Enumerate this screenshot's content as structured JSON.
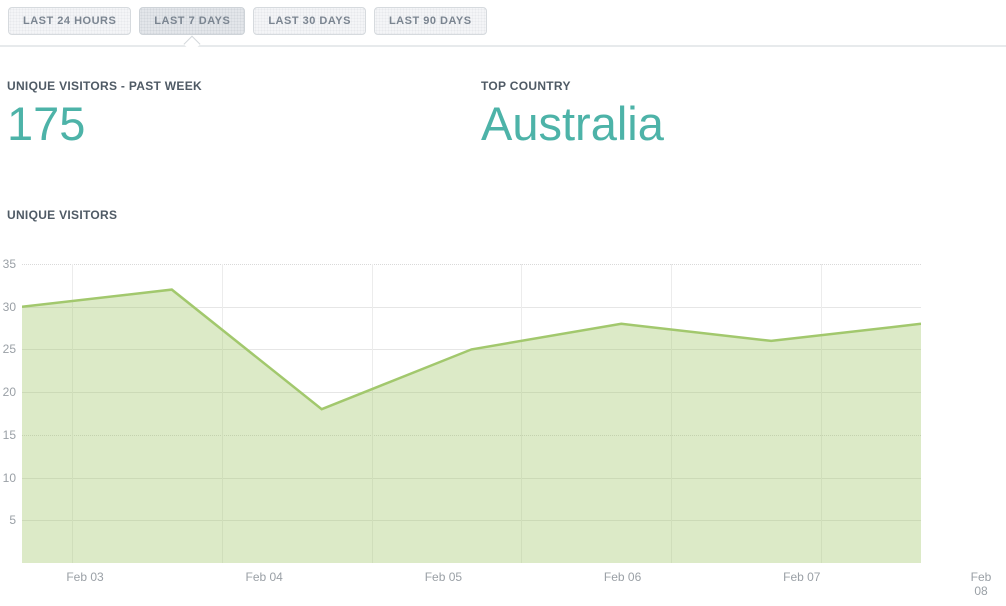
{
  "tabs": {
    "items": [
      {
        "label": "LAST 24 HOURS",
        "selected": false
      },
      {
        "label": "LAST 7 DAYS",
        "selected": true
      },
      {
        "label": "LAST 30 DAYS",
        "selected": false
      },
      {
        "label": "LAST 90 DAYS",
        "selected": false
      }
    ]
  },
  "stats": {
    "unique_visitors_week": {
      "label": "UNIQUE VISITORS - PAST WEEK",
      "value": "175"
    },
    "top_country": {
      "label": "TOP COUNTRY",
      "value": "Australia"
    }
  },
  "chart_section": {
    "title": "UNIQUE VISITORS"
  },
  "colors": {
    "accent_teal": "#4db3a8",
    "line_green": "#a2c86d",
    "area_fill": "rgba(162,200,109,0.38)",
    "heading_text": "#4f5a65",
    "axis_text": "#9aa0a6",
    "tab_text": "#7b8591"
  },
  "chart_data": {
    "type": "area",
    "title": "UNIQUE VISITORS",
    "series": [
      {
        "name": "Unique visitors",
        "values": [
          30,
          32,
          18,
          25,
          28,
          26,
          28
        ]
      }
    ],
    "x_tick_labels": [
      "Feb 03",
      "Feb 04",
      "Feb 05",
      "Feb 06",
      "Feb 07",
      "Feb 08"
    ],
    "y_ticks": [
      35,
      30,
      25,
      20,
      15,
      10,
      5
    ],
    "ylim": [
      0,
      35
    ],
    "grid": true,
    "legend": false
  }
}
